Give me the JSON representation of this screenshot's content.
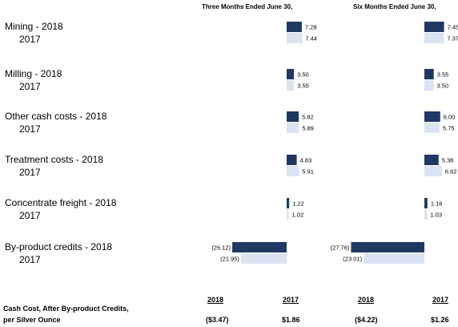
{
  "header": {
    "three_months": "Three Months Ended June 30,",
    "six_months": "Six Months Ended June 30,"
  },
  "colors": {
    "bar_2018": "#1f3864",
    "bar_2017": "#dae3f1"
  },
  "chart_data": {
    "type": "bar",
    "orientation": "horizontal",
    "panels": [
      "Three Months Ended June 30,",
      "Six Months Ended June 30,"
    ],
    "rows": [
      {
        "label": "Mining",
        "label_2018": "Mining  - 2018",
        "label_2017": "2017",
        "three": {
          "v2018": 7.28,
          "v2017": 7.44,
          "t2018": "7.28",
          "t2017": "7.44"
        },
        "six": {
          "v2018": 7.45,
          "v2017": 7.37,
          "t2018": "7.45",
          "t2017": "7.37"
        }
      },
      {
        "label": "Milling",
        "label_2018": "Milling  - 2018",
        "label_2017": "2017",
        "three": {
          "v2018": 3.5,
          "v2017": 3.55,
          "t2018": "3.50",
          "t2017": "3.55"
        },
        "six": {
          "v2018": 3.55,
          "v2017": 3.5,
          "t2018": "3.55",
          "t2017": "3.50"
        }
      },
      {
        "label": "Other cash costs",
        "label_2018": "Other cash costs  - 2018",
        "label_2017": "2017",
        "three": {
          "v2018": 5.82,
          "v2017": 5.89,
          "t2018": "5.82",
          "t2017": "5.89"
        },
        "six": {
          "v2018": 6.0,
          "v2017": 5.75,
          "t2018": "6.00",
          "t2017": "5.75"
        }
      },
      {
        "label": "Treatment costs",
        "label_2018": "Treatment costs  - 2018",
        "label_2017": "2017",
        "three": {
          "v2018": 4.83,
          "v2017": 5.91,
          "t2018": "4.83",
          "t2017": "5.91"
        },
        "six": {
          "v2018": 5.38,
          "v2017": 6.62,
          "t2018": "5.38",
          "t2017": "6.62"
        }
      },
      {
        "label": "Concentrate freight",
        "label_2018": "Concentrate freight  - 2018",
        "label_2017": "2017",
        "three": {
          "v2018": 1.22,
          "v2017": 1.02,
          "t2018": "1.22",
          "t2017": "1.02"
        },
        "six": {
          "v2018": 1.16,
          "v2017": 1.03,
          "t2018": "1.16",
          "t2017": "1.03"
        }
      },
      {
        "label": "By-product credits",
        "label_2018": "By-product credits  - 2018",
        "label_2017": "2017",
        "three": {
          "v2018": -26.12,
          "v2017": -21.95,
          "t2018": "(26.12)",
          "t2017": "(21.95)"
        },
        "six": {
          "v2018": -27.76,
          "v2017": -23.01,
          "t2018": "(27.76)",
          "t2017": "(23.01)"
        }
      }
    ]
  },
  "footer": {
    "label_line1": "Cash Cost, After By-product Credits,",
    "label_line2": "per Silver Ounce",
    "three": {
      "h2018": "2018",
      "h2017": "2017",
      "v2018": "($3.47)",
      "v2017": "$1.86"
    },
    "six": {
      "h2018": "2018",
      "h2017": "2017",
      "v2018": "($4.22)",
      "v2017": "$1.26"
    }
  }
}
